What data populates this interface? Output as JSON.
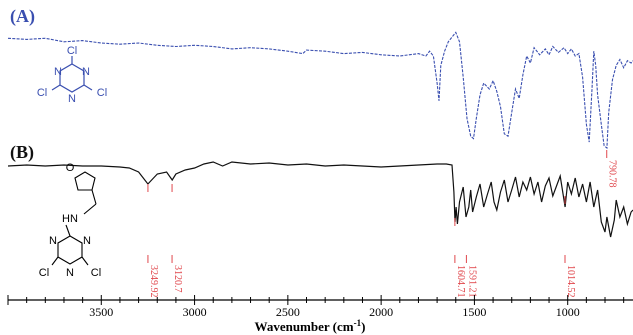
{
  "chart_data": {
    "type": "line",
    "xlabel": "Wavenumber (cm",
    "xlabel_sup": "-1",
    "xlabel_close": ")",
    "xlim": [
      4000,
      650
    ],
    "x_reversed": true,
    "x_ticks": [
      3500,
      3000,
      2500,
      2000,
      1500,
      1000
    ],
    "grid": false,
    "colors": {
      "A": "#3a4fb0",
      "B": "#111111",
      "annotation": "#e0474c"
    },
    "series": [
      {
        "name": "(A)",
        "molecule_atoms": [
          "Cl",
          "N",
          "N",
          "N",
          "Cl",
          "Cl"
        ],
        "peak_labels": [
          "790.78"
        ],
        "points": [
          [
            4000,
            0.93
          ],
          [
            3900,
            0.92
          ],
          [
            3800,
            0.93
          ],
          [
            3700,
            0.9
          ],
          [
            3600,
            0.91
          ],
          [
            3500,
            0.89
          ],
          [
            3400,
            0.88
          ],
          [
            3300,
            0.89
          ],
          [
            3200,
            0.87
          ],
          [
            3100,
            0.86
          ],
          [
            3000,
            0.87
          ],
          [
            2900,
            0.86
          ],
          [
            2800,
            0.84
          ],
          [
            2700,
            0.85
          ],
          [
            2600,
            0.84
          ],
          [
            2500,
            0.82
          ],
          [
            2420,
            0.8
          ],
          [
            2400,
            0.83
          ],
          [
            2300,
            0.82
          ],
          [
            2200,
            0.8
          ],
          [
            2100,
            0.81
          ],
          [
            2000,
            0.79
          ],
          [
            1900,
            0.78
          ],
          [
            1850,
            0.79
          ],
          [
            1800,
            0.8
          ],
          [
            1760,
            0.78
          ],
          [
            1740,
            0.82
          ],
          [
            1720,
            0.78
          ],
          [
            1700,
            0.55
          ],
          [
            1690,
            0.4
          ],
          [
            1680,
            0.7
          ],
          [
            1660,
            0.82
          ],
          [
            1640,
            0.9
          ],
          [
            1620,
            0.94
          ],
          [
            1600,
            0.98
          ],
          [
            1580,
            0.9
          ],
          [
            1560,
            0.6
          ],
          [
            1540,
            0.25
          ],
          [
            1520,
            0.1
          ],
          [
            1505,
            0.08
          ],
          [
            1490,
            0.25
          ],
          [
            1470,
            0.45
          ],
          [
            1450,
            0.55
          ],
          [
            1420,
            0.5
          ],
          [
            1400,
            0.57
          ],
          [
            1380,
            0.48
          ],
          [
            1360,
            0.35
          ],
          [
            1340,
            0.12
          ],
          [
            1320,
            0.1
          ],
          [
            1300,
            0.3
          ],
          [
            1280,
            0.5
          ],
          [
            1260,
            0.42
          ],
          [
            1240,
            0.62
          ],
          [
            1220,
            0.78
          ],
          [
            1200,
            0.72
          ],
          [
            1180,
            0.85
          ],
          [
            1150,
            0.79
          ],
          [
            1120,
            0.84
          ],
          [
            1100,
            0.79
          ],
          [
            1080,
            0.86
          ],
          [
            1050,
            0.81
          ],
          [
            1020,
            0.85
          ],
          [
            1000,
            0.8
          ],
          [
            980,
            0.84
          ],
          [
            960,
            0.78
          ],
          [
            940,
            0.8
          ],
          [
            920,
            0.6
          ],
          [
            900,
            0.2
          ],
          [
            885,
            0.05
          ],
          [
            870,
            0.5
          ],
          [
            860,
            0.82
          ],
          [
            850,
            0.7
          ],
          [
            840,
            0.45
          ],
          [
            820,
            0.2
          ],
          [
            805,
            0.02
          ],
          [
            790,
            0.0
          ],
          [
            780,
            0.3
          ],
          [
            760,
            0.58
          ],
          [
            740,
            0.7
          ],
          [
            720,
            0.75
          ],
          [
            700,
            0.68
          ],
          [
            680,
            0.74
          ],
          [
            660,
            0.72
          ],
          [
            650,
            0.74
          ]
        ]
      },
      {
        "name": "(B)",
        "molecule_atoms": [
          "O",
          "HN",
          "N",
          "N",
          "N",
          "Cl",
          "Cl"
        ],
        "peak_labels": [
          "3249.92",
          "3120.7",
          "1604.71",
          "1591.21",
          "1014.52"
        ],
        "points": [
          [
            4000,
            0.86
          ],
          [
            3900,
            0.87
          ],
          [
            3800,
            0.86
          ],
          [
            3700,
            0.87
          ],
          [
            3600,
            0.86
          ],
          [
            3500,
            0.86
          ],
          [
            3400,
            0.85
          ],
          [
            3350,
            0.84
          ],
          [
            3300,
            0.8
          ],
          [
            3250,
            0.68
          ],
          [
            3200,
            0.78
          ],
          [
            3150,
            0.8
          ],
          [
            3120,
            0.72
          ],
          [
            3100,
            0.78
          ],
          [
            3050,
            0.82
          ],
          [
            3000,
            0.84
          ],
          [
            2950,
            0.88
          ],
          [
            2900,
            0.9
          ],
          [
            2850,
            0.86
          ],
          [
            2800,
            0.9
          ],
          [
            2700,
            0.88
          ],
          [
            2600,
            0.89
          ],
          [
            2500,
            0.87
          ],
          [
            2400,
            0.88
          ],
          [
            2300,
            0.86
          ],
          [
            2200,
            0.87
          ],
          [
            2100,
            0.86
          ],
          [
            2000,
            0.85
          ],
          [
            1900,
            0.86
          ],
          [
            1800,
            0.87
          ],
          [
            1700,
            0.88
          ],
          [
            1650,
            0.88
          ],
          [
            1620,
            0.87
          ],
          [
            1610,
            0.6
          ],
          [
            1604,
            0.3
          ],
          [
            1598,
            0.45
          ],
          [
            1591,
            0.28
          ],
          [
            1580,
            0.5
          ],
          [
            1560,
            0.65
          ],
          [
            1545,
            0.35
          ],
          [
            1530,
            0.45
          ],
          [
            1520,
            0.62
          ],
          [
            1510,
            0.4
          ],
          [
            1490,
            0.55
          ],
          [
            1470,
            0.68
          ],
          [
            1450,
            0.45
          ],
          [
            1430,
            0.58
          ],
          [
            1410,
            0.7
          ],
          [
            1395,
            0.5
          ],
          [
            1380,
            0.42
          ],
          [
            1360,
            0.6
          ],
          [
            1340,
            0.72
          ],
          [
            1320,
            0.5
          ],
          [
            1300,
            0.62
          ],
          [
            1280,
            0.75
          ],
          [
            1260,
            0.55
          ],
          [
            1240,
            0.7
          ],
          [
            1220,
            0.62
          ],
          [
            1200,
            0.75
          ],
          [
            1180,
            0.58
          ],
          [
            1160,
            0.7
          ],
          [
            1140,
            0.5
          ],
          [
            1120,
            0.66
          ],
          [
            1100,
            0.74
          ],
          [
            1080,
            0.56
          ],
          [
            1060,
            0.66
          ],
          [
            1040,
            0.76
          ],
          [
            1014,
            0.45
          ],
          [
            1000,
            0.7
          ],
          [
            980,
            0.58
          ],
          [
            960,
            0.74
          ],
          [
            940,
            0.55
          ],
          [
            920,
            0.68
          ],
          [
            900,
            0.5
          ],
          [
            880,
            0.7
          ],
          [
            860,
            0.45
          ],
          [
            840,
            0.62
          ],
          [
            820,
            0.3
          ],
          [
            800,
            0.2
          ],
          [
            790,
            0.35
          ],
          [
            770,
            0.15
          ],
          [
            750,
            0.32
          ],
          [
            740,
            0.52
          ],
          [
            720,
            0.35
          ],
          [
            700,
            0.45
          ],
          [
            680,
            0.28
          ],
          [
            660,
            0.4
          ],
          [
            650,
            0.42
          ]
        ]
      }
    ]
  }
}
